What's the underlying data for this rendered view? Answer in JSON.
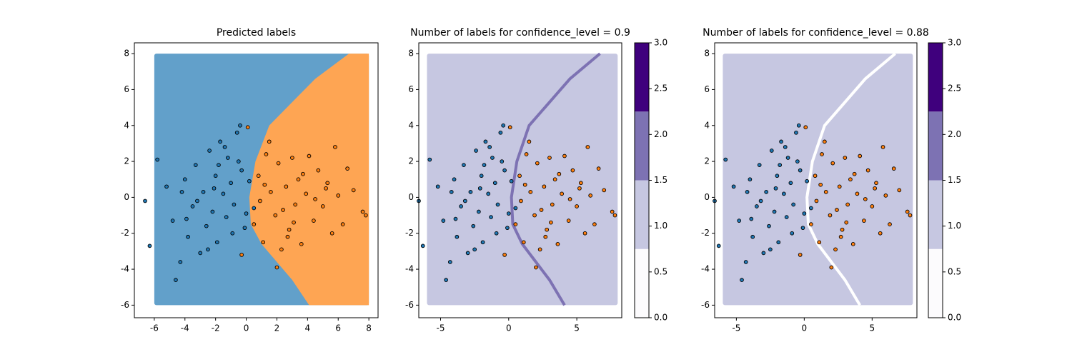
{
  "chart_data": [
    {
      "type": "scatter",
      "title": "Predicted labels",
      "xlim": [
        -7.3,
        8.6
      ],
      "ylim": [
        -6.7,
        8.6
      ],
      "xticks": [
        -6,
        -4,
        -2,
        0,
        2,
        4,
        6,
        8
      ],
      "yticks": [
        -6,
        -4,
        -2,
        0,
        2,
        4,
        6,
        8
      ],
      "grid_xlim": [
        -6,
        8
      ],
      "grid_ylim": [
        -6,
        8
      ],
      "region_colors": [
        "#62a0ca",
        "#fea553"
      ],
      "boundary": {
        "x": [
          6.7,
          4.5,
          3.0,
          1.5,
          0.6,
          0.2,
          0.3,
          1.0,
          2.0,
          3.0,
          4.1
        ],
        "y": [
          8,
          6.6,
          5.3,
          4,
          2,
          0,
          -1.5,
          -2.6,
          -3.6,
          -4.6,
          -6
        ]
      },
      "series": [
        {
          "color": "#1f77b4",
          "x": [
            -6.6,
            -6.3,
            -5.8,
            -4.6,
            -5.2,
            -4.8,
            -4.3,
            -4.0,
            -3.8,
            -3.5,
            -3.3,
            -3.0,
            -2.8,
            -2.6,
            -2.4,
            -2.2,
            -2.0,
            -1.9,
            -1.7,
            -1.5,
            -1.3,
            -1.2,
            -1.0,
            -0.8,
            -0.6,
            -0.4,
            -0.3,
            -0.1,
            0.2,
            0.5,
            -2.5,
            -3.2,
            -1.8,
            -0.9,
            -3.9,
            -2.1,
            -1.4,
            -0.5,
            -4.2,
            0.0
          ],
          "values": [
            -0.2,
            -2.7,
            2.1,
            -4.6,
            0.6,
            -1.3,
            -3.6,
            1.0,
            -2.2,
            -0.5,
            1.8,
            -3.1,
            0.3,
            -1.6,
            2.6,
            -0.8,
            1.2,
            -2.5,
            3.1,
            0.2,
            -1.1,
            2.2,
            0.8,
            -0.4,
            3.6,
            4.0,
            1.5,
            -1.7,
            0.9,
            -0.6,
            -2.9,
            -0.2,
            1.8,
            -2.0,
            -1.2,
            0.5,
            2.8,
            2.0,
            0.3,
            -0.9
          ]
        },
        {
          "color": "#ff7f0e",
          "x": [
            7.8,
            7.6,
            5.8,
            0.1,
            2.0,
            0.5,
            0.8,
            1.1,
            1.3,
            1.6,
            1.9,
            2.1,
            2.3,
            2.6,
            2.8,
            3.0,
            3.2,
            3.4,
            3.6,
            3.9,
            4.1,
            4.4,
            4.7,
            5.0,
            5.3,
            5.6,
            6.0,
            6.3,
            6.6,
            7.0,
            0.9,
            1.5,
            2.4,
            3.1,
            3.7,
            4.5,
            5.2,
            1.2,
            2.7,
            -0.3
          ],
          "values": [
            -1.0,
            -0.8,
            2.8,
            3.9,
            -3.9,
            -1.5,
            1.2,
            -2.5,
            2.4,
            0.3,
            -1.0,
            1.9,
            -2.9,
            0.6,
            -1.8,
            2.2,
            -0.4,
            1.0,
            -2.6,
            0.2,
            2.3,
            -1.3,
            1.5,
            -0.5,
            0.8,
            -2.0,
            0.1,
            -1.5,
            1.6,
            0.4,
            -0.2,
            3.1,
            -0.7,
            -1.4,
            1.3,
            -0.1,
            0.5,
            0.7,
            -2.2,
            -3.2
          ]
        }
      ]
    },
    {
      "type": "scatter",
      "title": "Number of labels for confidence_level = 0.9",
      "xlim": [
        -6.6,
        8.3
      ],
      "ylim": [
        -6.7,
        8.6
      ],
      "xticks": [
        -5,
        0,
        5
      ],
      "yticks": [
        -6,
        -4,
        -2,
        0,
        2,
        4,
        6,
        8
      ],
      "grid_xlim": [
        -6,
        8
      ],
      "grid_ylim": [
        -6,
        8
      ],
      "region_colors": [
        "#c6c7e1"
      ],
      "line_color": "#7d72b3",
      "boundary": {
        "x": [
          6.7,
          4.5,
          3.0,
          1.5,
          0.6,
          0.2,
          0.3,
          1.0,
          2.0,
          3.0,
          4.1
        ],
        "y": [
          8,
          6.6,
          5.3,
          4,
          2,
          0,
          -1.5,
          -2.6,
          -3.6,
          -4.6,
          -6
        ]
      },
      "colorbar": {
        "lim": [
          0,
          3
        ],
        "levels": [
          0,
          0.75,
          1.5,
          2.25,
          3
        ],
        "colors": [
          "#fcfbfd",
          "#c6c7e1",
          "#7d72b3",
          "#3f007d"
        ],
        "ticks": [
          {
            "value": 0,
            "label": "0.0"
          },
          0.5,
          {
            "value": 1,
            "label": "1.0"
          },
          1.5,
          {
            "value": 2,
            "label": "2.0"
          },
          2.5,
          {
            "value": 3,
            "label": "3.0"
          }
        ]
      },
      "series": [
        {
          "color": "#1f77b4",
          "x": [
            -6.6,
            -6.3,
            -5.8,
            -4.6,
            -5.2,
            -4.8,
            -4.3,
            -4.0,
            -3.8,
            -3.5,
            -3.3,
            -3.0,
            -2.8,
            -2.6,
            -2.4,
            -2.2,
            -2.0,
            -1.9,
            -1.7,
            -1.5,
            -1.3,
            -1.2,
            -1.0,
            -0.8,
            -0.6,
            -0.4,
            -0.3,
            -0.1,
            0.2,
            0.5,
            -2.5,
            -3.2,
            -1.8,
            -0.9,
            -3.9,
            -2.1,
            -1.4,
            -0.5,
            -4.2,
            0.0
          ],
          "values": [
            -0.2,
            -2.7,
            2.1,
            -4.6,
            0.6,
            -1.3,
            -3.6,
            1.0,
            -2.2,
            -0.5,
            1.8,
            -3.1,
            0.3,
            -1.6,
            2.6,
            -0.8,
            1.2,
            -2.5,
            3.1,
            0.2,
            -1.1,
            2.2,
            0.8,
            -0.4,
            3.6,
            4.0,
            1.5,
            -1.7,
            0.9,
            -0.6,
            -2.9,
            -0.2,
            1.8,
            -2.0,
            -1.2,
            0.5,
            2.8,
            2.0,
            0.3,
            -0.9
          ]
        },
        {
          "color": "#ff7f0e",
          "x": [
            7.8,
            7.6,
            5.8,
            0.1,
            2.0,
            0.5,
            0.8,
            1.1,
            1.3,
            1.6,
            1.9,
            2.1,
            2.3,
            2.6,
            2.8,
            3.0,
            3.2,
            3.4,
            3.6,
            3.9,
            4.1,
            4.4,
            4.7,
            5.0,
            5.3,
            5.6,
            6.0,
            6.3,
            6.6,
            7.0,
            0.9,
            1.5,
            2.4,
            3.1,
            3.7,
            4.5,
            5.2,
            1.2,
            2.7,
            -0.3
          ],
          "values": [
            -1.0,
            -0.8,
            2.8,
            3.9,
            -3.9,
            -1.5,
            1.2,
            -2.5,
            2.4,
            0.3,
            -1.0,
            1.9,
            -2.9,
            0.6,
            -1.8,
            2.2,
            -0.4,
            1.0,
            -2.6,
            0.2,
            2.3,
            -1.3,
            1.5,
            -0.5,
            0.8,
            -2.0,
            0.1,
            -1.5,
            1.6,
            0.4,
            -0.2,
            3.1,
            -0.7,
            -1.4,
            1.3,
            -0.1,
            0.5,
            0.7,
            -2.2,
            -3.2
          ]
        }
      ]
    },
    {
      "type": "scatter",
      "title": "Number of labels for confidence_level = 0.88",
      "xlim": [
        -6.6,
        8.3
      ],
      "ylim": [
        -6.7,
        8.6
      ],
      "xticks": [
        -5,
        0,
        5
      ],
      "yticks": [
        -6,
        -4,
        -2,
        0,
        2,
        4,
        6,
        8
      ],
      "grid_xlim": [
        -6,
        8
      ],
      "grid_ylim": [
        -6,
        8
      ],
      "region_colors": [
        "#c6c7e1"
      ],
      "line_color": "#ffffff",
      "boundary": {
        "x": [
          6.7,
          4.5,
          3.0,
          1.5,
          0.6,
          0.2,
          0.3,
          1.0,
          2.0,
          3.0,
          4.1
        ],
        "y": [
          8,
          6.6,
          5.3,
          4,
          2,
          0,
          -1.5,
          -2.6,
          -3.6,
          -4.6,
          -6
        ]
      },
      "colorbar": {
        "lim": [
          0,
          3
        ],
        "levels": [
          0,
          0.75,
          1.5,
          2.25,
          3
        ],
        "colors": [
          "#fcfbfd",
          "#c6c7e1",
          "#7d72b3",
          "#3f007d"
        ],
        "ticks": [
          {
            "value": 0,
            "label": "0.0"
          },
          0.5,
          {
            "value": 1,
            "label": "1.0"
          },
          1.5,
          {
            "value": 2,
            "label": "2.0"
          },
          2.5,
          {
            "value": 3,
            "label": "3.0"
          }
        ]
      },
      "series": [
        {
          "color": "#1f77b4",
          "x": [
            -6.6,
            -6.3,
            -5.8,
            -4.6,
            -5.2,
            -4.8,
            -4.3,
            -4.0,
            -3.8,
            -3.5,
            -3.3,
            -3.0,
            -2.8,
            -2.6,
            -2.4,
            -2.2,
            -2.0,
            -1.9,
            -1.7,
            -1.5,
            -1.3,
            -1.2,
            -1.0,
            -0.8,
            -0.6,
            -0.4,
            -0.3,
            -0.1,
            0.2,
            0.5,
            -2.5,
            -3.2,
            -1.8,
            -0.9,
            -3.9,
            -2.1,
            -1.4,
            -0.5,
            -4.2,
            0.0
          ],
          "values": [
            -0.2,
            -2.7,
            2.1,
            -4.6,
            0.6,
            -1.3,
            -3.6,
            1.0,
            -2.2,
            -0.5,
            1.8,
            -3.1,
            0.3,
            -1.6,
            2.6,
            -0.8,
            1.2,
            -2.5,
            3.1,
            0.2,
            -1.1,
            2.2,
            0.8,
            -0.4,
            3.6,
            4.0,
            1.5,
            -1.7,
            0.9,
            -0.6,
            -2.9,
            -0.2,
            1.8,
            -2.0,
            -1.2,
            0.5,
            2.8,
            2.0,
            0.3,
            -0.9
          ]
        },
        {
          "color": "#ff7f0e",
          "x": [
            7.8,
            7.6,
            5.8,
            0.1,
            2.0,
            0.5,
            0.8,
            1.1,
            1.3,
            1.6,
            1.9,
            2.1,
            2.3,
            2.6,
            2.8,
            3.0,
            3.2,
            3.4,
            3.6,
            3.9,
            4.1,
            4.4,
            4.7,
            5.0,
            5.3,
            5.6,
            6.0,
            6.3,
            6.6,
            7.0,
            0.9,
            1.5,
            2.4,
            3.1,
            3.7,
            4.5,
            5.2,
            1.2,
            2.7,
            -0.3
          ],
          "values": [
            -1.0,
            -0.8,
            2.8,
            3.9,
            -3.9,
            -1.5,
            1.2,
            -2.5,
            2.4,
            0.3,
            -1.0,
            1.9,
            -2.9,
            0.6,
            -1.8,
            2.2,
            -0.4,
            1.0,
            -2.6,
            0.2,
            2.3,
            -1.3,
            1.5,
            -0.5,
            0.8,
            -2.0,
            0.1,
            -1.5,
            1.6,
            0.4,
            -0.2,
            3.1,
            -0.7,
            -1.4,
            1.3,
            -0.1,
            0.5,
            0.7,
            -2.2,
            -3.2
          ]
        }
      ]
    }
  ]
}
